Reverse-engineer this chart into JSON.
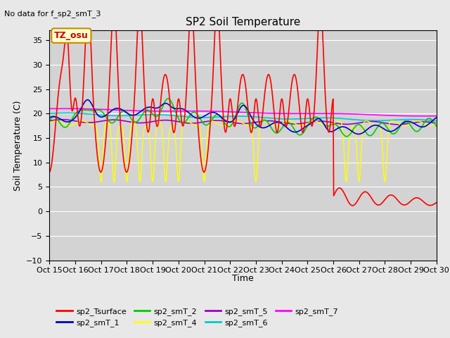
{
  "title": "SP2 Soil Temperature",
  "subtitle": "No data for f_sp2_smT_3",
  "xlabel": "Time",
  "ylabel": "Soil Temperature (C)",
  "ylim": [
    -10,
    37
  ],
  "yticks": [
    -10,
    -5,
    0,
    5,
    10,
    15,
    20,
    25,
    30,
    35
  ],
  "xtick_labels": [
    "Oct 15",
    "Oct 16",
    "Oct 17",
    "Oct 18",
    "Oct 19",
    "Oct 20",
    "Oct 21",
    "Oct 22",
    "Oct 23",
    "Oct 24",
    "Oct 25",
    "Oct 26",
    "Oct 27",
    "Oct 28",
    "Oct 29",
    "Oct 30"
  ],
  "bg_color": "#e8e8e8",
  "plot_bg_color": "#d3d3d3",
  "tz_label": "TZ_osu",
  "series_colors": {
    "sp2_Tsurface": "#ff0000",
    "sp2_smT_1": "#0000cd",
    "sp2_smT_2": "#00cc00",
    "sp2_smT_4": "#ffff00",
    "sp2_smT_5": "#9900cc",
    "sp2_smT_6": "#00cccc",
    "sp2_smT_7": "#ff00ff"
  },
  "n_days": 15
}
